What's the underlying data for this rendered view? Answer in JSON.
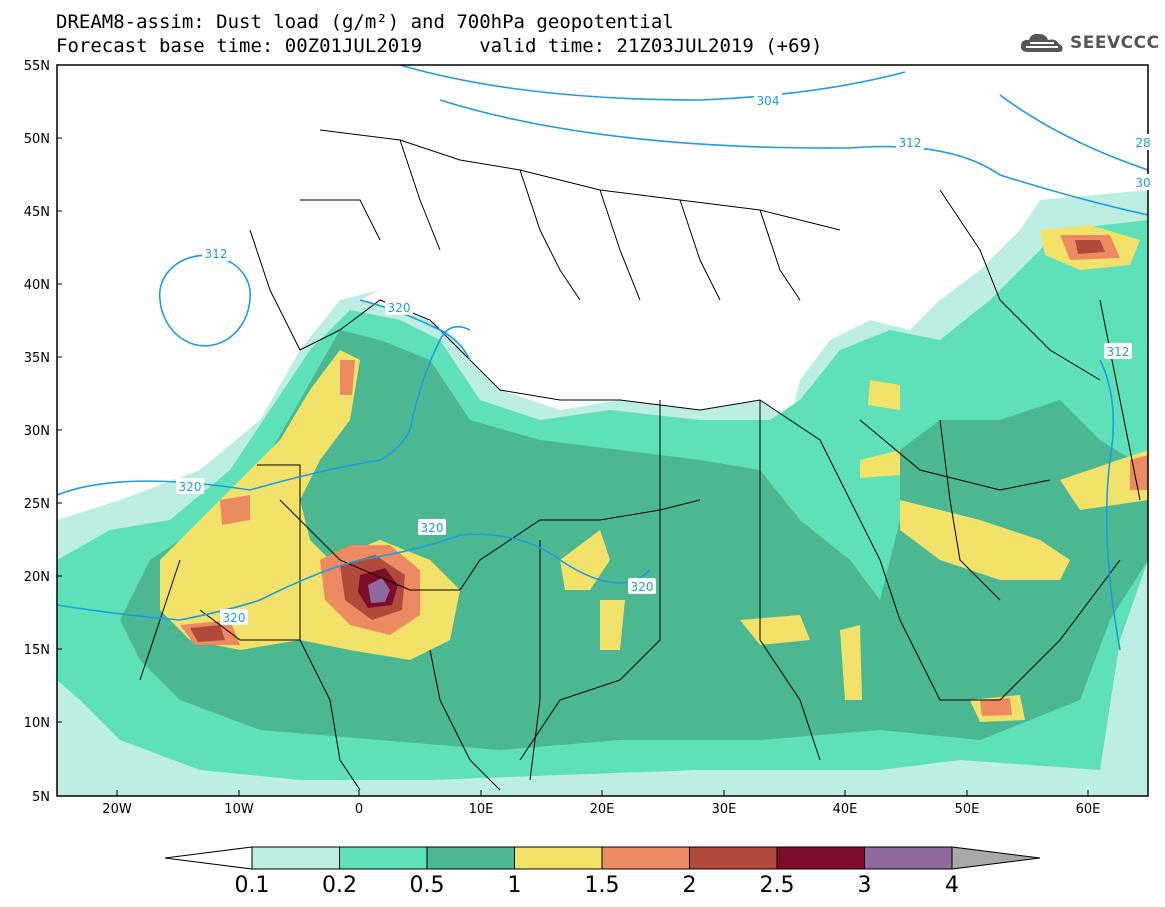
{
  "header": {
    "title_line1": "DREAM8-assim: Dust load (g/m²) and 700hPa geopotential",
    "title_line2": "Forecast base time: 00Z01JUL2019     valid time: 21Z03JUL2019 (+69)"
  },
  "logo": {
    "text": "SEEVCCC",
    "icon": "cloud-icon"
  },
  "map": {
    "lat_labels": [
      "55N",
      "50N",
      "45N",
      "40N",
      "35N",
      "30N",
      "25N",
      "20N",
      "15N",
      "10N",
      "5N"
    ],
    "lon_labels": [
      "20W",
      "10W",
      "0",
      "10E",
      "20E",
      "30E",
      "40E",
      "50E",
      "60E"
    ],
    "contour_labels": [
      "304",
      "312",
      "312",
      "320",
      "320",
      "320",
      "320",
      "320",
      "312",
      "28",
      "30"
    ],
    "colors": {
      "ocean": "#ffffff",
      "land_border": "#000000",
      "contour": "#1e9be6"
    }
  },
  "colorbar": {
    "ticks": [
      "0.1",
      "0.2",
      "0.5",
      "1",
      "1.5",
      "2",
      "2.5",
      "3",
      "4"
    ],
    "colors": [
      "#ffffff",
      "#bdeee3",
      "#5ee0b8",
      "#4cb891",
      "#f3e26a",
      "#ec8b62",
      "#b2493b",
      "#7f0d2a",
      "#8f6a9f",
      "#a9a9a9"
    ]
  }
}
